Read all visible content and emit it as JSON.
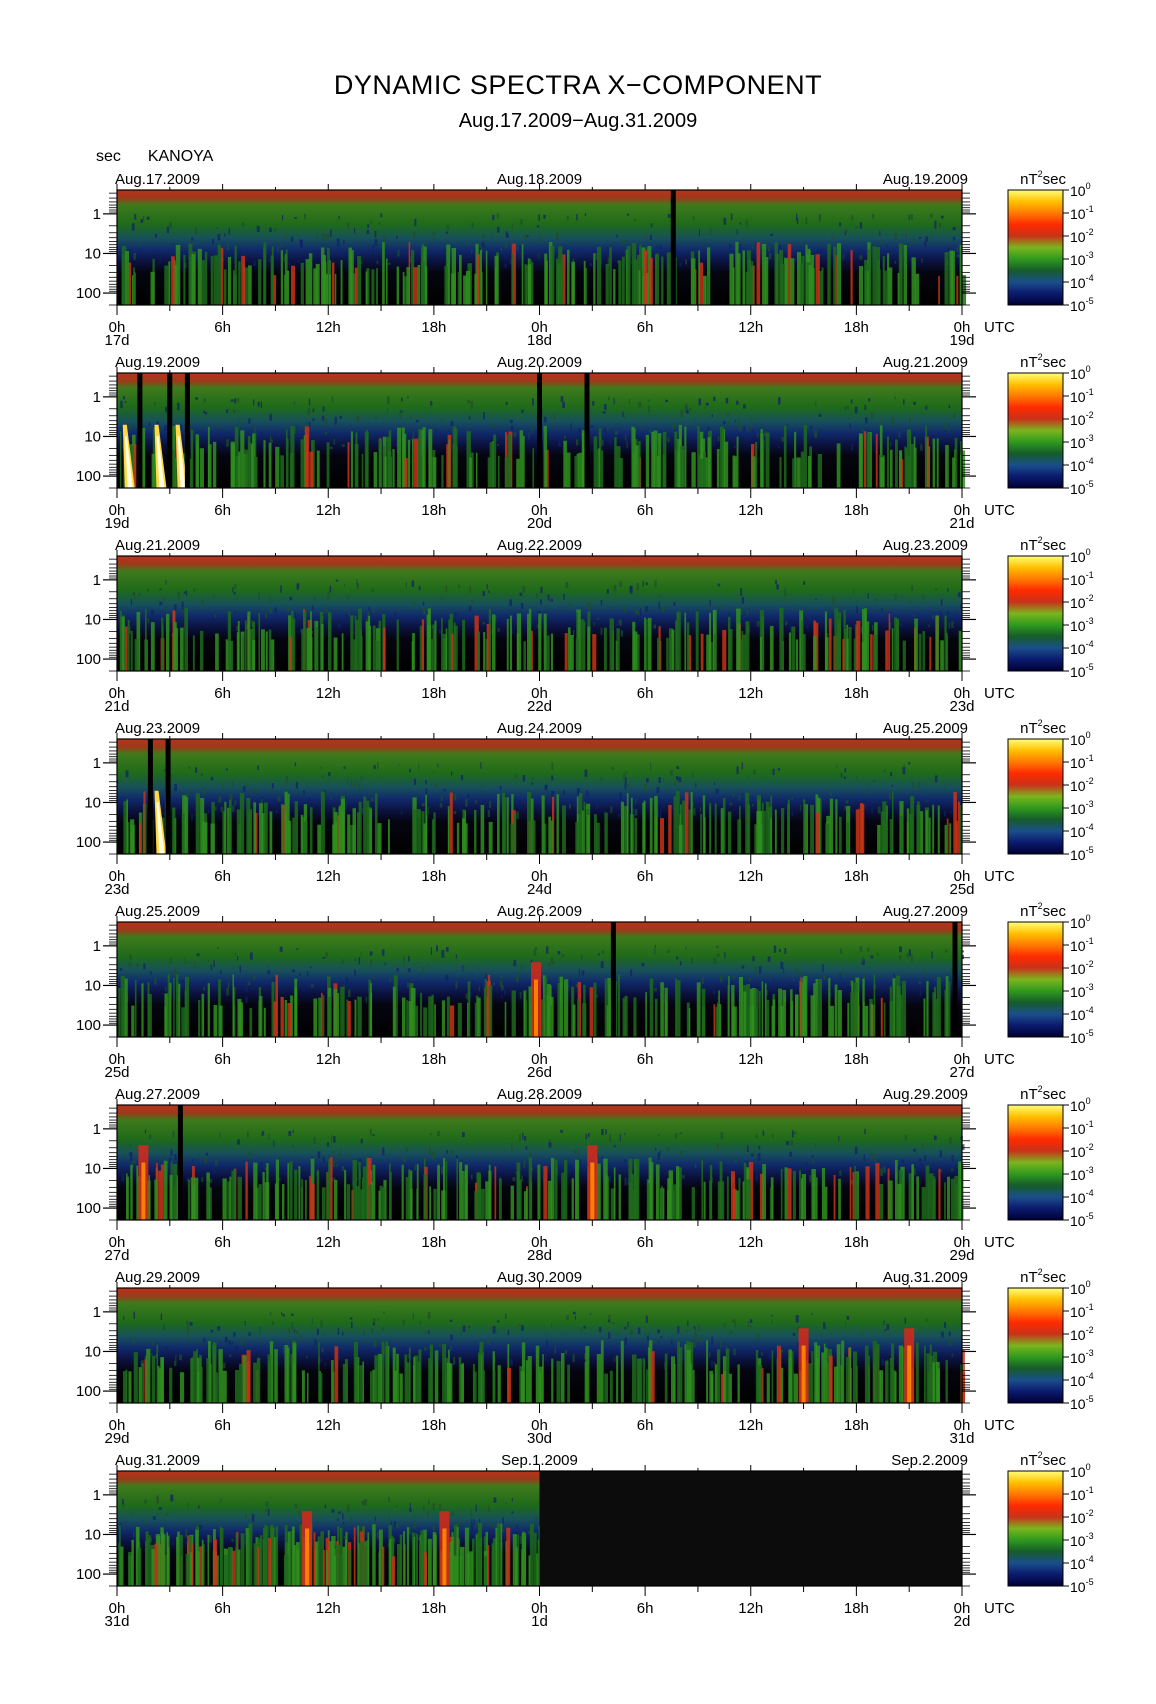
{
  "header": {
    "title": "DYNAMIC SPECTRA X−COMPONENT",
    "subtitle": "Aug.17.2009−Aug.31.2009",
    "y_unit": "sec",
    "station": "KANOYA",
    "colorbar_unit": "nT",
    "colorbar_unit_exp": "2",
    "colorbar_unit_suffix": "sec",
    "utc_label": "UTC"
  },
  "chart_data": {
    "type": "heatmap",
    "title": "DYNAMIC SPECTRA X−COMPONENT",
    "subtitle": "Aug.17.2009−Aug.31.2009",
    "ylabel": "sec",
    "y_scale": "log",
    "y_reversed": true,
    "ylim": [
      0.25,
      200
    ],
    "y_ticks": [
      "1",
      "10",
      "100"
    ],
    "x_ticks": [
      "0h",
      "6h",
      "12h",
      "18h",
      "0h",
      "6h",
      "12h",
      "18h",
      "0h"
    ],
    "colorbar": {
      "scale": "log",
      "range": [
        1e-05,
        1
      ],
      "tick_bases": [
        "10",
        "10",
        "10",
        "10",
        "10",
        "10"
      ],
      "tick_exponents": [
        "0",
        "-1",
        "-2",
        "-3",
        "-4",
        "-5"
      ],
      "colors": [
        "#000033",
        "#0b1a6e",
        "#1a4f8a",
        "#155c2a",
        "#2f9a1e",
        "#7bb51e",
        "#c8321a",
        "#ff2a00",
        "#ff7a00",
        "#ffc000",
        "#ffff7a"
      ]
    },
    "panels": [
      {
        "start_label": "Aug.17.2009",
        "mid_label": "Aug.18.2009",
        "end_label": "Aug.19.2009",
        "day_labels": [
          "17d",
          "18d",
          "19d"
        ],
        "data_gaps_hours": [
          31.6
        ],
        "pulsation_events_hours": [],
        "strong_events_hours": [],
        "no_data_from_hour": null
      },
      {
        "start_label": "Aug.19.2009",
        "mid_label": "Aug.20.2009",
        "end_label": "Aug.21.2009",
        "day_labels": [
          "19d",
          "20d",
          "21d"
        ],
        "data_gaps_hours": [
          1.3,
          3.0,
          4.0,
          24.0,
          26.7
        ],
        "pulsation_events_hours": [
          0.5,
          2.3,
          3.5
        ],
        "strong_events_hours": [],
        "no_data_from_hour": null
      },
      {
        "start_label": "Aug.21.2009",
        "mid_label": "Aug.22.2009",
        "end_label": "Aug.23.2009",
        "day_labels": [
          "21d",
          "22d",
          "23d"
        ],
        "data_gaps_hours": [],
        "pulsation_events_hours": [],
        "strong_events_hours": [],
        "no_data_from_hour": null
      },
      {
        "start_label": "Aug.23.2009",
        "mid_label": "Aug.24.2009",
        "end_label": "Aug.25.2009",
        "day_labels": [
          "23d",
          "24d",
          "25d"
        ],
        "data_gaps_hours": [
          1.9,
          2.9
        ],
        "pulsation_events_hours": [
          2.3
        ],
        "strong_events_hours": [],
        "no_data_from_hour": null
      },
      {
        "start_label": "Aug.25.2009",
        "mid_label": "Aug.26.2009",
        "end_label": "Aug.27.2009",
        "day_labels": [
          "25d",
          "26d",
          "27d"
        ],
        "data_gaps_hours": [
          28.2,
          47.6
        ],
        "pulsation_events_hours": [],
        "strong_events_hours": [
          23.8
        ],
        "no_data_from_hour": null
      },
      {
        "start_label": "Aug.27.2009",
        "mid_label": "Aug.28.2009",
        "end_label": "Aug.29.2009",
        "day_labels": [
          "27d",
          "28d",
          "29d"
        ],
        "data_gaps_hours": [
          3.6
        ],
        "pulsation_events_hours": [],
        "strong_events_hours": [
          1.5,
          27.0
        ],
        "no_data_from_hour": null
      },
      {
        "start_label": "Aug.29.2009",
        "mid_label": "Aug.30.2009",
        "end_label": "Aug.31.2009",
        "day_labels": [
          "29d",
          "30d",
          "31d"
        ],
        "data_gaps_hours": [],
        "pulsation_events_hours": [],
        "strong_events_hours": [
          39.0,
          45.0
        ],
        "no_data_from_hour": null
      },
      {
        "start_label": "Aug.31.2009",
        "mid_label": "Sep.1.2009",
        "end_label": "Sep.2.2009",
        "day_labels": [
          "31d",
          "1d",
          "2d"
        ],
        "data_gaps_hours": [],
        "pulsation_events_hours": [],
        "strong_events_hours": [
          10.8,
          18.6
        ],
        "no_data_from_hour": 24
      }
    ]
  }
}
